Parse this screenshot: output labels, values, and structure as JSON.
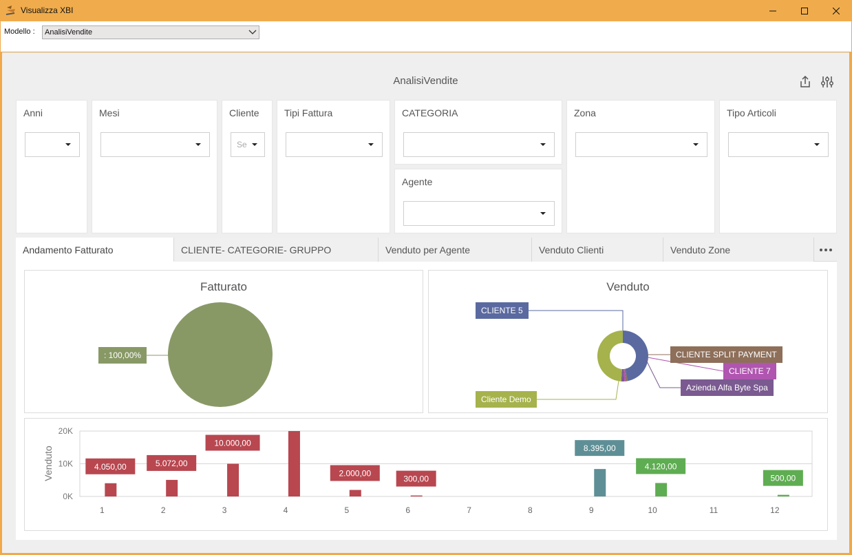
{
  "window": {
    "title": "Visualizza XBI"
  },
  "model": {
    "label": "Modello :",
    "value": "AnalisiVendite"
  },
  "dashboard": {
    "title": "AnalisiVendite",
    "filters": {
      "anni": {
        "title": "Anni",
        "value": ""
      },
      "mesi": {
        "title": "Mesi",
        "value": ""
      },
      "cliente": {
        "title": "Cliente",
        "value": "Se"
      },
      "tipi_fattura": {
        "title": "Tipi Fattura",
        "value": ""
      },
      "categoria": {
        "title": "CATEGORIA",
        "value": ""
      },
      "agente": {
        "title": "Agente",
        "value": ""
      },
      "zona": {
        "title": "Zona",
        "value": ""
      },
      "tipo_articoli": {
        "title": "Tipo Articoli",
        "value": ""
      }
    },
    "tabs": [
      {
        "label": "Andamento Fatturato"
      },
      {
        "label": "CLIENTE- CATEGORIE- GRUPPO"
      },
      {
        "label": "Venduto per Agente"
      },
      {
        "label": "Venduto Clienti"
      },
      {
        "label": "Venduto Zone"
      }
    ]
  },
  "chart_data": [
    {
      "type": "pie",
      "title": "Fatturato",
      "slices": [
        {
          "label": ": 100,00%",
          "value": 100,
          "color": "#889966"
        }
      ]
    },
    {
      "type": "pie",
      "title": "Venduto",
      "donut": true,
      "slices": [
        {
          "label": "CLIENTE 5",
          "value": 47,
          "color": "#5a6aa0"
        },
        {
          "label": "CLIENTE SPLIT PAYMENT",
          "value": 1,
          "color": "#8e6f5a"
        },
        {
          "label": "CLIENTE 7",
          "value": 1,
          "color": "#b055b0"
        },
        {
          "label": "Azienda Alfa Byte Spa",
          "value": 2,
          "color": "#7a5a90"
        },
        {
          "label": "Cliente Demo",
          "value": 49,
          "color": "#a6b24c"
        }
      ]
    },
    {
      "type": "bar",
      "ylabel": "Venduto",
      "ylim": [
        0,
        20000
      ],
      "yticks": [
        "0K",
        "10K",
        "20K"
      ],
      "categories": [
        "1",
        "2",
        "3",
        "4",
        "5",
        "6",
        "7",
        "8",
        "9",
        "10",
        "11",
        "12"
      ],
      "values": [
        4050,
        5072,
        10000,
        20000,
        2000,
        300,
        0,
        0,
        8395,
        4120,
        0,
        500
      ],
      "labels": [
        "4.050,00",
        "5.072,00",
        "10.000,00",
        "",
        "2.000,00",
        "300,00",
        "",
        "",
        "8.395,00",
        "4.120,00",
        "",
        "500,00"
      ],
      "colors": [
        "#b84750",
        "#b84750",
        "#b84750",
        "#b84750",
        "#b84750",
        "#b84750",
        "#b84750",
        "#b84750",
        "#5e8f96",
        "#5fad52",
        "#5fad52",
        "#5fad52"
      ]
    }
  ]
}
